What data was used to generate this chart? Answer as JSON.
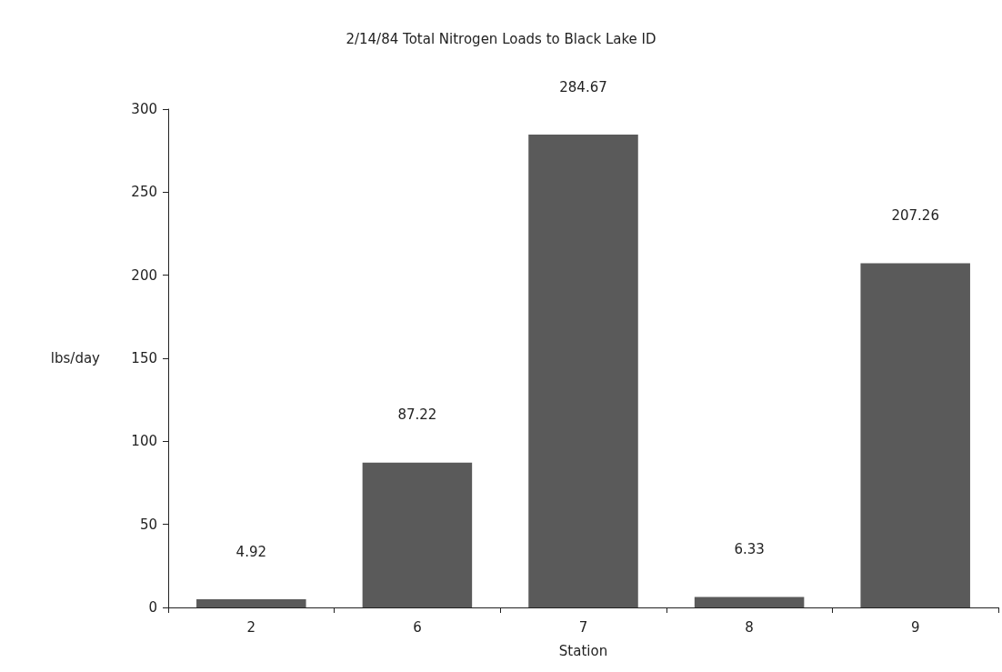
{
  "chart_data": {
    "type": "bar",
    "title": "2/14/84 Total Nitrogen Loads to Black Lake ID",
    "xlabel": "Station",
    "ylabel": "lbs/day",
    "categories": [
      "2",
      "6",
      "7",
      "8",
      "9"
    ],
    "values": [
      4.92,
      87.22,
      284.67,
      6.33,
      207.26
    ],
    "color": "#5a5a5a",
    "ylim": [
      0,
      300
    ],
    "yticks": [
      0,
      50,
      100,
      150,
      200,
      250,
      300
    ],
    "data_labels": true,
    "grid": false
  }
}
